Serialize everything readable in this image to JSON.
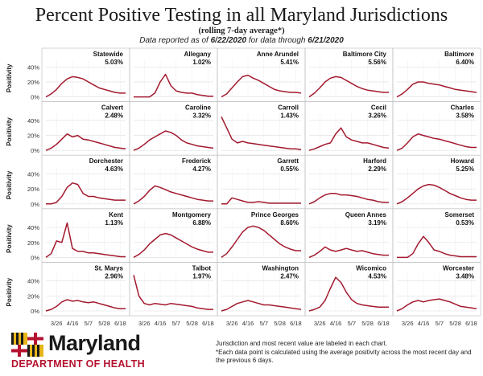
{
  "header": {
    "title": "Percent Positive Testing in all Maryland Jurisdictions",
    "subtitle": "(rolling 7-day average*)",
    "data_prefix": "Data reported as of ",
    "reported_date": "6/22/2020",
    "data_middle": " for data through ",
    "through_date": "6/21/2020"
  },
  "logo": {
    "name": "Maryland",
    "department": "DEPARTMENT OF HEALTH"
  },
  "footnotes": [
    "Jurisdiction and most recent value are labeled in each chart.",
    "*Each data point is calculated using the average positivity across the most recent day and the previous 6 days."
  ],
  "colors": {
    "line": "#a3192e",
    "grid": "#dddddd",
    "panel_border": "#bbbbbb"
  },
  "chart_data": {
    "type": "line",
    "layout": "small multiples, 5 rows x 5 columns",
    "ylabel": "Positivity",
    "yticks": [
      "0%",
      "20%",
      "40%"
    ],
    "ylim": [
      0,
      50
    ],
    "grid": true,
    "xticks": [
      "3/26",
      "4/16",
      "5/7",
      "5/28",
      "6/18"
    ],
    "x_dates": [
      "3/12",
      "3/19",
      "3/26",
      "4/2",
      "4/9",
      "4/16",
      "4/23",
      "4/30",
      "5/7",
      "5/14",
      "5/21",
      "5/28",
      "6/4",
      "6/11",
      "6/18",
      "6/21"
    ],
    "panels": [
      {
        "name": "Statewide",
        "latest": "5.03%",
        "values": [
          0,
          4,
          10,
          18,
          24,
          27,
          26,
          24,
          20,
          16,
          12,
          10,
          8,
          6,
          5,
          5
        ]
      },
      {
        "name": "Allegany",
        "latest": "1.02%",
        "values": [
          0,
          0,
          0,
          0,
          5,
          20,
          30,
          15,
          8,
          6,
          5,
          5,
          3,
          2,
          1,
          1
        ]
      },
      {
        "name": "Anne Arundel",
        "latest": "5.41%",
        "values": [
          0,
          4,
          12,
          20,
          27,
          29,
          25,
          22,
          18,
          14,
          10,
          8,
          7,
          6,
          6,
          5
        ]
      },
      {
        "name": "Baltimore City",
        "latest": "5.56%",
        "values": [
          0,
          5,
          12,
          20,
          25,
          27,
          26,
          22,
          18,
          14,
          11,
          9,
          8,
          7,
          6,
          6
        ]
      },
      {
        "name": "Baltimore",
        "latest": "6.40%",
        "values": [
          0,
          4,
          10,
          17,
          20,
          20,
          18,
          17,
          16,
          14,
          12,
          10,
          9,
          8,
          7,
          6
        ]
      },
      {
        "name": "Calvert",
        "latest": "2.48%",
        "values": [
          0,
          3,
          8,
          15,
          22,
          18,
          20,
          15,
          14,
          12,
          10,
          8,
          6,
          4,
          3,
          2
        ]
      },
      {
        "name": "Caroline",
        "latest": "3.32%",
        "values": [
          0,
          3,
          8,
          14,
          18,
          22,
          26,
          24,
          20,
          14,
          10,
          8,
          6,
          5,
          4,
          3
        ]
      },
      {
        "name": "Carroll",
        "latest": "1.43%",
        "values": [
          45,
          30,
          15,
          10,
          12,
          10,
          9,
          8,
          7,
          6,
          5,
          4,
          3,
          2,
          2,
          1
        ]
      },
      {
        "name": "Cecil",
        "latest": "3.26%",
        "values": [
          0,
          2,
          5,
          8,
          10,
          22,
          30,
          18,
          14,
          12,
          10,
          10,
          8,
          6,
          4,
          3
        ]
      },
      {
        "name": "Charles",
        "latest": "3.58%",
        "values": [
          0,
          3,
          10,
          18,
          22,
          20,
          18,
          16,
          15,
          13,
          11,
          9,
          7,
          5,
          4,
          4
        ]
      },
      {
        "name": "Dorchester",
        "latest": "4.63%",
        "values": [
          0,
          0,
          2,
          10,
          22,
          28,
          26,
          14,
          10,
          10,
          8,
          7,
          6,
          5,
          5,
          5
        ]
      },
      {
        "name": "Frederick",
        "latest": "4.27%",
        "values": [
          0,
          4,
          10,
          18,
          24,
          22,
          19,
          16,
          14,
          12,
          10,
          8,
          6,
          5,
          4,
          4
        ]
      },
      {
        "name": "Garrett",
        "latest": "0.55%",
        "values": [
          0,
          0,
          8,
          6,
          4,
          2,
          2,
          3,
          2,
          1,
          1,
          1,
          1,
          1,
          1,
          1
        ]
      },
      {
        "name": "Harford",
        "latest": "2.29%",
        "values": [
          0,
          3,
          8,
          12,
          14,
          14,
          12,
          12,
          11,
          10,
          8,
          6,
          5,
          3,
          2,
          2
        ]
      },
      {
        "name": "Howard",
        "latest": "5.25%",
        "values": [
          0,
          3,
          8,
          14,
          20,
          24,
          26,
          25,
          22,
          18,
          14,
          11,
          8,
          6,
          5,
          5
        ]
      },
      {
        "name": "Kent",
        "latest": "1.13%",
        "values": [
          0,
          5,
          22,
          20,
          46,
          12,
          8,
          8,
          6,
          6,
          5,
          4,
          3,
          2,
          1,
          1
        ]
      },
      {
        "name": "Montgomery",
        "latest": "6.88%",
        "values": [
          0,
          4,
          10,
          18,
          24,
          30,
          32,
          30,
          26,
          22,
          18,
          14,
          11,
          9,
          7,
          7
        ]
      },
      {
        "name": "Prince Georges",
        "latest": "8.60%",
        "values": [
          0,
          5,
          14,
          24,
          34,
          40,
          42,
          40,
          36,
          30,
          24,
          18,
          14,
          11,
          9,
          9
        ]
      },
      {
        "name": "Queen Annes",
        "latest": "3.19%",
        "values": [
          0,
          3,
          8,
          14,
          10,
          8,
          10,
          12,
          10,
          8,
          9,
          7,
          5,
          4,
          3,
          3
        ]
      },
      {
        "name": "Somerset",
        "latest": "0.53%",
        "values": [
          0,
          0,
          0,
          5,
          18,
          28,
          20,
          10,
          8,
          5,
          3,
          2,
          1,
          1,
          1,
          1
        ]
      },
      {
        "name": "St. Marys",
        "latest": "2.96%",
        "values": [
          0,
          2,
          6,
          12,
          15,
          13,
          14,
          12,
          11,
          12,
          10,
          8,
          6,
          4,
          3,
          3
        ]
      },
      {
        "name": "Talbot",
        "latest": "1.97%",
        "values": [
          48,
          20,
          10,
          8,
          10,
          9,
          8,
          10,
          9,
          8,
          7,
          6,
          4,
          3,
          2,
          2
        ]
      },
      {
        "name": "Washington",
        "latest": "2.47%",
        "values": [
          0,
          2,
          6,
          10,
          12,
          14,
          12,
          10,
          8,
          8,
          7,
          6,
          5,
          4,
          3,
          2
        ]
      },
      {
        "name": "Wicomico",
        "latest": "4.53%",
        "values": [
          0,
          2,
          5,
          14,
          30,
          45,
          38,
          25,
          15,
          10,
          8,
          7,
          6,
          5,
          5,
          5
        ]
      },
      {
        "name": "Worcester",
        "latest": "3.48%",
        "values": [
          0,
          3,
          8,
          12,
          14,
          12,
          14,
          15,
          16,
          14,
          12,
          9,
          6,
          5,
          4,
          3
        ]
      }
    ]
  }
}
